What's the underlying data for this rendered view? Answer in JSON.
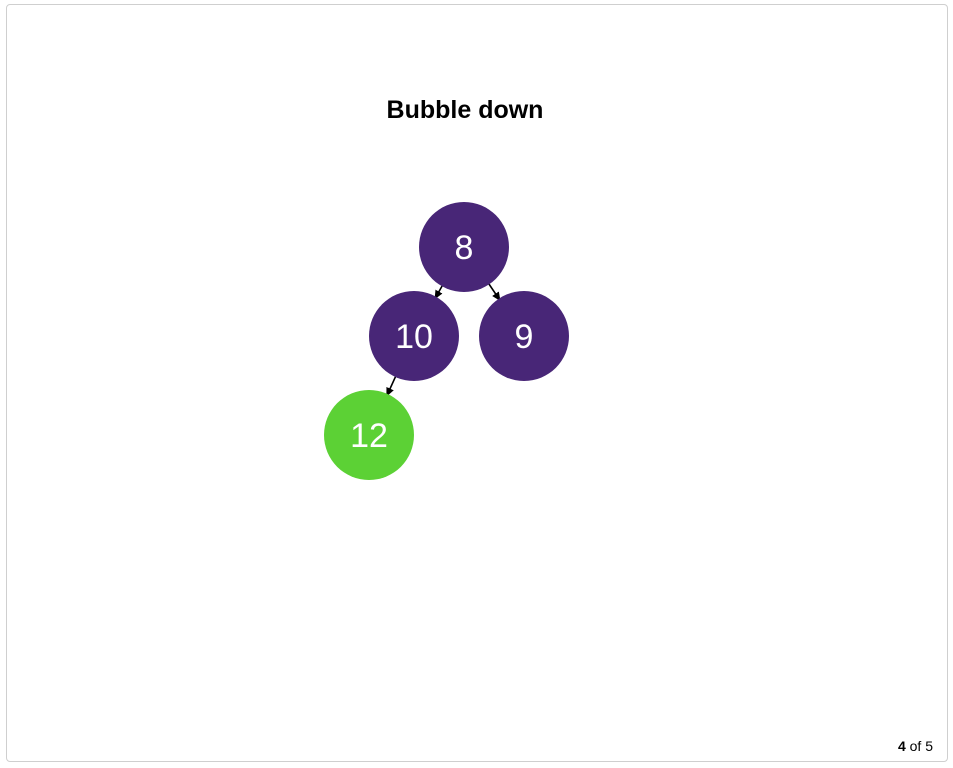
{
  "slide": {
    "title": "Bubble down"
  },
  "colors": {
    "node_default": "#482677",
    "node_highlight": "#5cd135",
    "edge": "#000000",
    "text": "#ffffff"
  },
  "tree": {
    "nodes": [
      {
        "id": "root",
        "value": "8",
        "state": "default"
      },
      {
        "id": "left",
        "value": "10",
        "state": "default"
      },
      {
        "id": "right",
        "value": "9",
        "state": "default"
      },
      {
        "id": "left-left",
        "value": "12",
        "state": "highlight"
      }
    ],
    "edges": [
      {
        "from": "root",
        "to": "left"
      },
      {
        "from": "root",
        "to": "right"
      },
      {
        "from": "left",
        "to": "left-left"
      }
    ]
  },
  "pager": {
    "current": "4",
    "separator": " of ",
    "total": "5"
  }
}
